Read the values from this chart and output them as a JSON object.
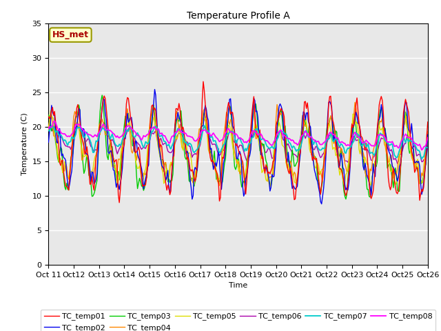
{
  "title": "Temperature Profile A",
  "xlabel": "Time",
  "ylabel": "Temperature (C)",
  "ylim": [
    0,
    35
  ],
  "xlim": [
    0,
    375
  ],
  "background_color": "#e8e8e8",
  "annotation_text": "HS_met",
  "annotation_color": "#aa0000",
  "annotation_bg": "#ffffcc",
  "annotation_border": "#999900",
  "series_colors": {
    "TC_temp01": "#ff0000",
    "TC_temp02": "#0000ee",
    "TC_temp03": "#00cc00",
    "TC_temp04": "#ff8800",
    "TC_temp05": "#dddd00",
    "TC_temp06": "#aa00aa",
    "TC_temp07": "#00cccc",
    "TC_temp08": "#ff00ff"
  },
  "x_tick_labels": [
    "Oct 11",
    "Oct 12",
    "Oct 13",
    "Oct 14",
    "Oct 15",
    "Oct 16",
    "Oct 17",
    "Oct 18",
    "Oct 19",
    "Oct 20",
    "Oct 21",
    "Oct 22",
    "Oct 23",
    "Oct 24",
    "Oct 25",
    "Oct 26"
  ],
  "x_tick_positions": [
    0,
    25,
    50,
    75,
    100,
    125,
    150,
    175,
    200,
    225,
    250,
    275,
    300,
    325,
    350,
    375
  ],
  "figsize": [
    6.4,
    4.8
  ],
  "dpi": 100
}
